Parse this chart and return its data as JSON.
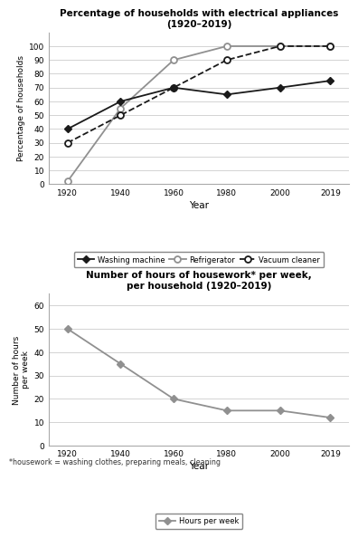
{
  "years": [
    1920,
    1940,
    1960,
    1980,
    2000,
    2019
  ],
  "washing_machine": [
    40,
    60,
    70,
    65,
    70,
    75
  ],
  "refrigerator": [
    2,
    55,
    90,
    100,
    100,
    100
  ],
  "vacuum_cleaner": [
    30,
    50,
    70,
    90,
    100,
    100
  ],
  "hours_per_week": [
    50,
    35,
    20,
    15,
    15,
    12
  ],
  "title1": "Percentage of households with electrical appliances\n(1920–2019)",
  "title2": "Number of hours of housework* per week,\nper household (1920–2019)",
  "ylabel1": "Percentage of households",
  "ylabel2": "Number of hours\nper week",
  "xlabel": "Year",
  "ylim1": [
    0,
    110
  ],
  "ylim2": [
    0,
    65
  ],
  "yticks1": [
    0,
    10,
    20,
    30,
    40,
    50,
    60,
    70,
    80,
    90,
    100
  ],
  "yticks2": [
    0,
    10,
    20,
    30,
    40,
    50,
    60
  ],
  "footnote": "*housework = washing clothes, preparing meals, cleaning",
  "gray_color": "#909090",
  "dark_color": "#1a1a1a",
  "grid_color": "#cccccc"
}
